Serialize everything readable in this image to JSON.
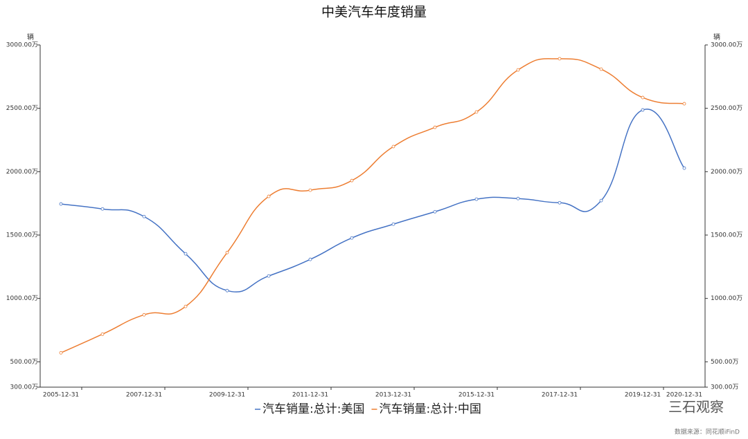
{
  "chart_data": {
    "type": "line",
    "title": "中美汽车年度销量",
    "y_label": "辆",
    "y2_label": "辆",
    "categories": [
      "2005-12-31",
      null,
      "2007-12-31",
      null,
      "2009-12-31",
      null,
      "2011-12-31",
      null,
      "2013-12-31",
      null,
      "2015-12-31",
      null,
      "2017-12-31",
      null,
      "2019-12-31",
      "2020-12-31"
    ],
    "series": [
      {
        "name": "汽车销量:总计:美国",
        "color": "#4472c4",
        "values": [
          1745,
          1706,
          1646,
          1352,
          1062,
          1177,
          1308,
          1477,
          1586,
          1684,
          1783,
          1788,
          1755,
          1772,
          2487,
          2028
        ]
      },
      {
        "name": "汽车销量:总计:中国",
        "color": "#ed7d31",
        "axis": "y2",
        "values": [
          571,
          718,
          871,
          937,
          1362,
          1805,
          1854,
          1930,
          2198,
          2350,
          2471,
          2803,
          2891,
          2809,
          2585,
          2536
        ]
      }
    ],
    "ylim": [
      300,
      3000
    ],
    "yticks": [
      {
        "value": 300,
        "label": "300.00万"
      },
      {
        "value": 500,
        "label": "500.00万"
      },
      {
        "value": 1000,
        "label": "1000.00万"
      },
      {
        "value": 1500,
        "label": "1500.00万"
      },
      {
        "value": 2000,
        "label": "2000.00万"
      },
      {
        "value": 2500,
        "label": "2500.00万"
      },
      {
        "value": 3000,
        "label": "3000.00万"
      }
    ],
    "y2lim": [
      300,
      3000
    ],
    "y2ticks": [
      {
        "value": 300,
        "label": "300.00万"
      },
      {
        "value": 500,
        "label": "500.00万"
      },
      {
        "value": 1000,
        "label": "1000.00万"
      },
      {
        "value": 1500,
        "label": "1500.00万"
      },
      {
        "value": 2000,
        "label": "2000.00万"
      },
      {
        "value": 2500,
        "label": "2500.00万"
      },
      {
        "value": 3000,
        "label": "3000.00万"
      }
    ],
    "legend": "bottom",
    "annotations": [
      "三石观察",
      "数据来源：同花顺iFinD"
    ]
  }
}
